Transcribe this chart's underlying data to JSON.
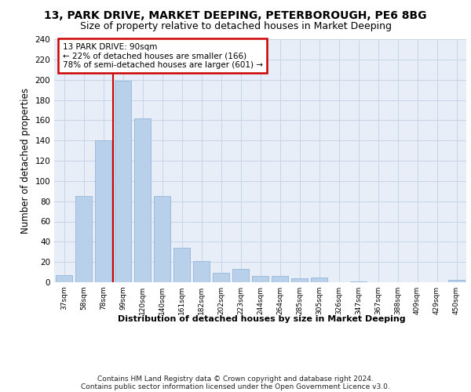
{
  "title1": "13, PARK DRIVE, MARKET DEEPING, PETERBOROUGH, PE6 8BG",
  "title2": "Size of property relative to detached houses in Market Deeping",
  "xlabel": "Distribution of detached houses by size in Market Deeping",
  "ylabel": "Number of detached properties",
  "categories": [
    "37sqm",
    "58sqm",
    "78sqm",
    "99sqm",
    "120sqm",
    "140sqm",
    "161sqm",
    "182sqm",
    "202sqm",
    "223sqm",
    "244sqm",
    "264sqm",
    "285sqm",
    "305sqm",
    "326sqm",
    "347sqm",
    "367sqm",
    "388sqm",
    "409sqm",
    "429sqm",
    "450sqm"
  ],
  "values": [
    7,
    85,
    140,
    199,
    162,
    85,
    34,
    21,
    9,
    13,
    6,
    6,
    4,
    5,
    0,
    1,
    0,
    0,
    0,
    0,
    2
  ],
  "bar_color": "#b8d0ea",
  "bar_edge_color": "#8ab0d4",
  "grid_color": "#c8d4e8",
  "bg_color": "#e8eef8",
  "annotation_text": "13 PARK DRIVE: 90sqm\n← 22% of detached houses are smaller (166)\n78% of semi-detached houses are larger (601) →",
  "annotation_box_color": "#ffffff",
  "annotation_box_edge": "#cc0000",
  "ylim": [
    0,
    240
  ],
  "yticks": [
    0,
    20,
    40,
    60,
    80,
    100,
    120,
    140,
    160,
    180,
    200,
    220,
    240
  ],
  "footer1": "Contains HM Land Registry data © Crown copyright and database right 2024.",
  "footer2": "Contains public sector information licensed under the Open Government Licence v3.0.",
  "vline_color": "#cc0000",
  "vline_x": 2.5
}
